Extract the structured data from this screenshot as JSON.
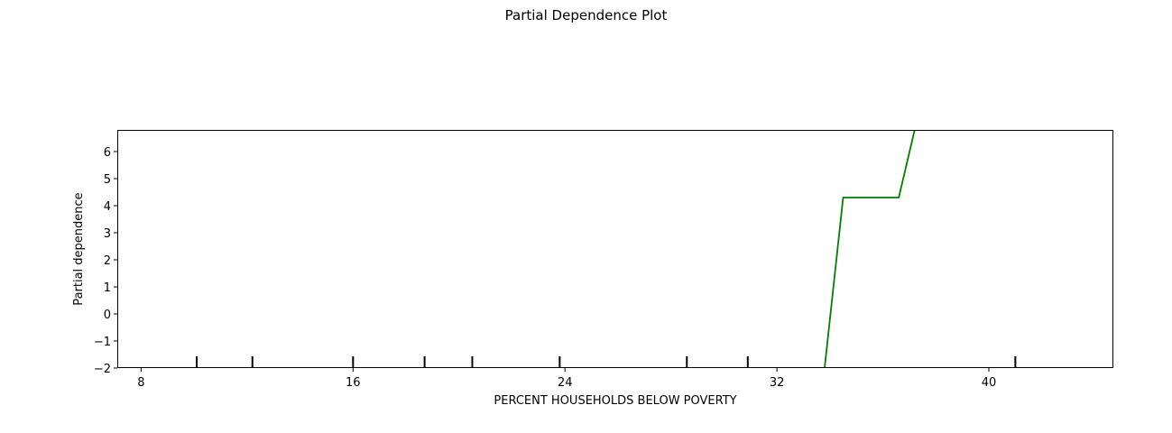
{
  "chart_data": {
    "type": "line",
    "title": "Partial Dependence Plot",
    "xlabel": "PERCENT HOUSEHOLDS BELOW POVERTY",
    "ylabel": "Partial dependence",
    "xlim": [
      7.1,
      44.7
    ],
    "ylim": [
      -2.0,
      6.8
    ],
    "xticks": [
      8,
      16,
      24,
      32,
      40
    ],
    "yticks": [
      -2,
      -1,
      0,
      1,
      2,
      3,
      4,
      5,
      6
    ],
    "ytick_labels": [
      "−2",
      "−1",
      "0",
      "1",
      "2",
      "3",
      "4",
      "5",
      "6"
    ],
    "series": [
      {
        "color": "#008000",
        "x": [
          8.8,
          33.8,
          34.5,
          36.6,
          37.2,
          44.7
        ],
        "y": [
          -2.0,
          -2.0,
          4.3,
          4.3,
          6.8,
          6.8
        ]
      }
    ],
    "deciles": [
      10.1,
      12.2,
      16.0,
      18.7,
      20.5,
      23.8,
      28.6,
      30.9,
      41.0
    ],
    "grid": false,
    "legend": "none"
  }
}
